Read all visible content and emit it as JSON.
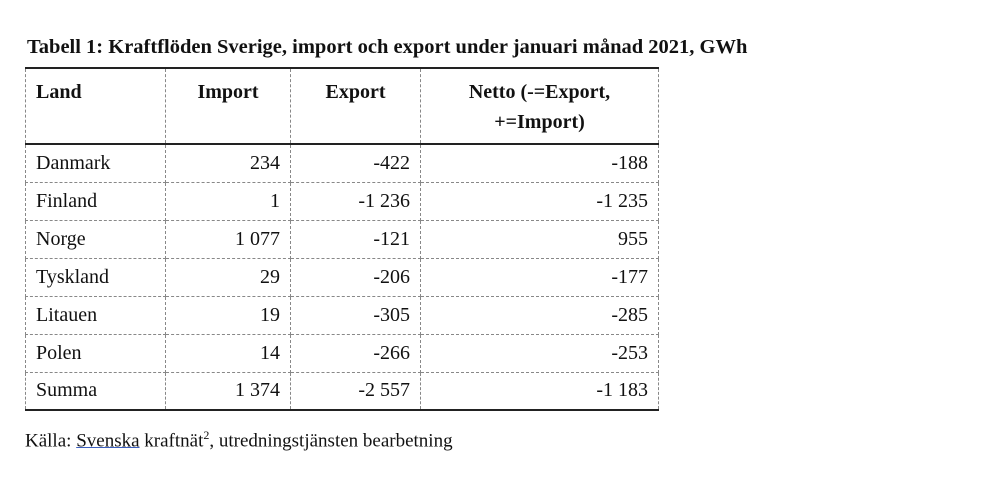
{
  "title": "Tabell 1: Kraftflöden Sverige, import och export under januari månad 2021, GWh",
  "table": {
    "header": [
      "Land",
      "Import",
      "Export",
      "Netto (-=Export, +=Import)"
    ],
    "rows": [
      [
        "Danmark",
        "234",
        "-422",
        "-188"
      ],
      [
        "Finland",
        "1",
        "-1 236",
        "-1 235"
      ],
      [
        "Norge",
        "1 077",
        "-121",
        "955"
      ],
      [
        "Tyskland",
        "29",
        "-206",
        "-177"
      ],
      [
        "Litauen",
        "19",
        "-305",
        "-285"
      ],
      [
        "Polen",
        "14",
        "-266",
        "-253"
      ],
      [
        "Summa",
        "1 374",
        "-2 557",
        "-1 183"
      ]
    ]
  },
  "source": {
    "prefix": "Källa:",
    "link": "Svenska",
    "word": "kraftnät",
    "footnote": "2",
    "rest": ", utredningstjänsten bearbetning"
  }
}
